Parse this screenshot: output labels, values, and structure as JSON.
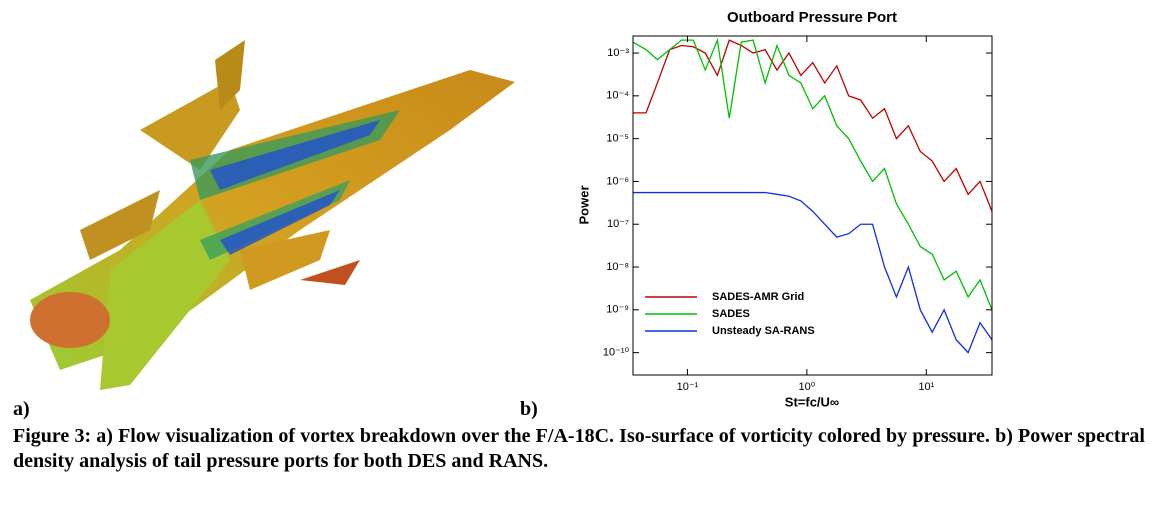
{
  "figure_labels": {
    "a": "a)",
    "b": "b)"
  },
  "caption": "Figure 3: a) Flow visualization of vortex breakdown over the F/A-18C. Iso-surface of vorticity colored by pressure. b) Power spectral density analysis of tail pressure ports for both DES and RANS.",
  "chart_data": {
    "type": "line",
    "title": "Outboard Pressure Port",
    "x_label": "St=fc/U∞",
    "y_label": "Power",
    "x_log": true,
    "y_log": true,
    "legend": "lower left",
    "xlim": [
      0.035,
      35.5
    ],
    "ylim": [
      3e-11,
      0.0025
    ],
    "xticks": [
      {
        "value": 0.1,
        "label": "10⁻¹"
      },
      {
        "value": 1,
        "label": "10⁰"
      },
      {
        "value": 10,
        "label": "10¹"
      }
    ],
    "yticks": [
      {
        "value": 1e-10,
        "label": "10⁻¹⁰"
      },
      {
        "value": 1e-09,
        "label": "10⁻⁹"
      },
      {
        "value": 1e-08,
        "label": "10⁻⁸"
      },
      {
        "value": 1e-07,
        "label": "10⁻⁷"
      },
      {
        "value": 1e-06,
        "label": "10⁻⁶"
      },
      {
        "value": 1e-05,
        "label": "10⁻⁵"
      },
      {
        "value": 0.0001,
        "label": "10⁻⁴"
      },
      {
        "value": 0.001,
        "label": "10⁻³"
      }
    ],
    "x": [
      0.035,
      0.045,
      0.056,
      0.071,
      0.089,
      0.112,
      0.141,
      0.178,
      0.224,
      0.282,
      0.355,
      0.447,
      0.562,
      0.708,
      0.891,
      1.12,
      1.41,
      1.78,
      2.24,
      2.82,
      3.55,
      4.47,
      5.62,
      7.08,
      8.91,
      11.2,
      14.1,
      17.8,
      22.4,
      28.2,
      35.5
    ],
    "series": [
      {
        "name": "SADES-AMR Grid",
        "color": "#c00000",
        "values": [
          4e-05,
          4e-05,
          0.0002,
          0.0012,
          0.0015,
          0.0014,
          0.001,
          0.0003,
          0.002,
          0.0015,
          0.001,
          0.0012,
          0.0004,
          0.001,
          0.0003,
          0.0006,
          0.0002,
          0.0005,
          0.0001,
          8e-05,
          3e-05,
          5e-05,
          1e-05,
          2e-05,
          5e-06,
          3e-06,
          1e-06,
          2e-06,
          5e-07,
          1e-06,
          2e-07
        ]
      },
      {
        "name": "SADES",
        "color": "#00c000",
        "values": [
          0.0018,
          0.0012,
          0.0007,
          0.0012,
          0.002,
          0.002,
          0.0004,
          0.002,
          3e-05,
          0.0018,
          0.002,
          0.0002,
          0.0015,
          0.0003,
          0.0002,
          5e-05,
          0.0001,
          2e-05,
          1e-05,
          3e-06,
          1e-06,
          2e-06,
          3e-07,
          1e-07,
          3e-08,
          2e-08,
          5e-09,
          8e-09,
          2e-09,
          5e-09,
          1e-09
        ]
      },
      {
        "name": "Unsteady SA-RANS",
        "color": "#1030e0",
        "values": [
          5.5e-07,
          5.5e-07,
          5.5e-07,
          5.5e-07,
          5.5e-07,
          5.5e-07,
          5.5e-07,
          5.5e-07,
          5.5e-07,
          5.5e-07,
          5.5e-07,
          5.5e-07,
          5e-07,
          4.5e-07,
          3.5e-07,
          2e-07,
          1e-07,
          5e-08,
          6e-08,
          1e-07,
          1e-07,
          1e-08,
          2e-09,
          1e-08,
          1e-09,
          3e-10,
          1e-09,
          2e-10,
          1e-10,
          5e-10,
          2e-10
        ]
      }
    ]
  }
}
